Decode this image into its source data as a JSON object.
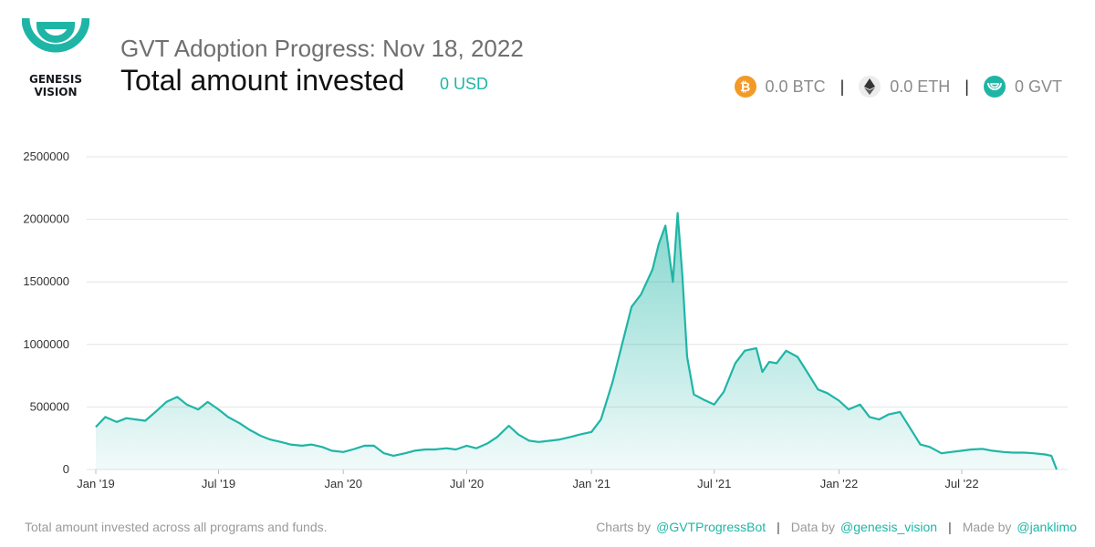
{
  "brand": {
    "logo_text_line1": "GENESIS",
    "logo_text_line2": "VISION",
    "accent": "#1fb5a6"
  },
  "header": {
    "subtitle": "GVT Adoption Progress: Nov 18, 2022",
    "title": "Total amount invested",
    "usd_value": "0 USD"
  },
  "holdings": [
    {
      "icon": "bitcoin-icon",
      "text": "0.0 BTC",
      "color": "#f39a26"
    },
    {
      "icon": "ethereum-icon",
      "text": "0.0 ETH",
      "color": "#ececec"
    },
    {
      "icon": "gvt-icon",
      "text": "0 GVT",
      "color": "#1fb5a6"
    }
  ],
  "separator": "|",
  "chart_data": {
    "type": "area",
    "title": "",
    "xlabel": "",
    "ylabel": "",
    "ylim": [
      0,
      2500000
    ],
    "yticks": [
      "0",
      "500000",
      "1000000",
      "1500000",
      "2000000",
      "2500000"
    ],
    "xticks": [
      "Jan '19",
      "Jul '19",
      "Jan '20",
      "Jul '20",
      "Jan '21",
      "Jul '21",
      "Jan '22",
      "Jul '22"
    ],
    "grid": true,
    "line_color": "#1fb5a6",
    "series": [
      {
        "x": [
          "2019-01-01",
          "2019-01-15",
          "2019-02-01",
          "2019-02-15",
          "2019-03-01",
          "2019-03-15",
          "2019-04-01",
          "2019-04-15",
          "2019-05-01",
          "2019-05-15",
          "2019-06-01",
          "2019-06-15",
          "2019-07-01",
          "2019-07-15",
          "2019-08-01",
          "2019-08-15",
          "2019-09-01",
          "2019-09-15",
          "2019-10-01",
          "2019-10-15",
          "2019-11-01",
          "2019-11-15",
          "2019-12-01",
          "2019-12-15",
          "2020-01-01",
          "2020-01-15",
          "2020-02-01",
          "2020-02-15",
          "2020-03-01",
          "2020-03-15",
          "2020-04-01",
          "2020-04-15",
          "2020-05-01",
          "2020-05-15",
          "2020-06-01",
          "2020-06-15",
          "2020-07-01",
          "2020-07-15",
          "2020-08-01",
          "2020-08-15",
          "2020-09-01",
          "2020-09-15",
          "2020-10-01",
          "2020-10-15",
          "2020-11-01",
          "2020-11-15",
          "2020-12-01",
          "2020-12-15",
          "2021-01-01",
          "2021-01-15",
          "2021-02-01",
          "2021-02-15",
          "2021-03-01",
          "2021-03-15",
          "2021-04-01",
          "2021-04-10",
          "2021-04-20",
          "2021-05-01",
          "2021-05-08",
          "2021-05-15",
          "2021-05-22",
          "2021-06-01",
          "2021-06-15",
          "2021-07-01",
          "2021-07-15",
          "2021-08-01",
          "2021-08-15",
          "2021-09-01",
          "2021-09-10",
          "2021-09-20",
          "2021-10-01",
          "2021-10-15",
          "2021-11-01",
          "2021-11-15",
          "2021-12-01",
          "2021-12-15",
          "2022-01-01",
          "2022-01-15",
          "2022-02-01",
          "2022-02-15",
          "2022-03-01",
          "2022-03-15",
          "2022-04-01",
          "2022-04-15",
          "2022-05-01",
          "2022-05-15",
          "2022-06-01",
          "2022-06-15",
          "2022-07-01",
          "2022-07-15",
          "2022-08-01",
          "2022-08-15",
          "2022-09-01",
          "2022-09-15",
          "2022-10-01",
          "2022-10-15",
          "2022-11-01",
          "2022-11-10",
          "2022-11-18"
        ],
        "values": [
          340000,
          420000,
          380000,
          410000,
          400000,
          390000,
          470000,
          540000,
          580000,
          520000,
          480000,
          540000,
          480000,
          420000,
          370000,
          320000,
          270000,
          240000,
          220000,
          200000,
          190000,
          200000,
          180000,
          150000,
          140000,
          160000,
          190000,
          190000,
          130000,
          110000,
          130000,
          150000,
          160000,
          160000,
          170000,
          160000,
          190000,
          170000,
          210000,
          260000,
          350000,
          280000,
          230000,
          220000,
          230000,
          240000,
          260000,
          280000,
          300000,
          400000,
          700000,
          1000000,
          1300000,
          1400000,
          1600000,
          1800000,
          1950000,
          1500000,
          2050000,
          1550000,
          900000,
          600000,
          560000,
          520000,
          620000,
          850000,
          950000,
          970000,
          780000,
          860000,
          850000,
          950000,
          900000,
          780000,
          640000,
          610000,
          550000,
          480000,
          520000,
          420000,
          400000,
          440000,
          460000,
          340000,
          200000,
          180000,
          130000,
          140000,
          150000,
          160000,
          165000,
          150000,
          140000,
          135000,
          135000,
          130000,
          120000,
          110000,
          0
        ]
      }
    ]
  },
  "footer": {
    "caption": "Total amount invested across all programs and funds.",
    "charts_by_prefix": "Charts by",
    "charts_by_link": "@GVTProgressBot",
    "data_by_prefix": "Data by",
    "data_by_link": "@genesis_vision",
    "made_by_prefix": "Made by",
    "made_by_link": "@janklimo"
  }
}
